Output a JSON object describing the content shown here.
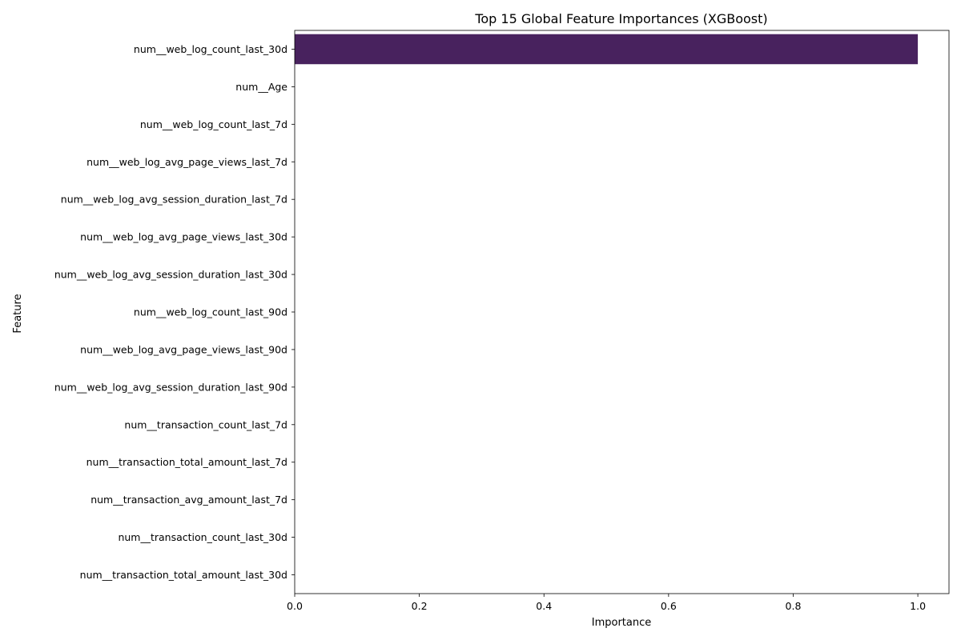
{
  "chart_data": {
    "type": "bar",
    "orientation": "horizontal",
    "title": "Top 15 Global Feature Importances (XGBoost)",
    "xlabel": "Importance",
    "ylabel": "Feature",
    "xlim": [
      0,
      1.05
    ],
    "xticks": [
      "0.0",
      "0.2",
      "0.4",
      "0.6",
      "0.8",
      "1.0"
    ],
    "grid": false,
    "categories": [
      "num__web_log_count_last_30d",
      "num__Age",
      "num__web_log_count_last_7d",
      "num__web_log_avg_page_views_last_7d",
      "num__web_log_avg_session_duration_last_7d",
      "num__web_log_avg_page_views_last_30d",
      "num__web_log_avg_session_duration_last_30d",
      "num__web_log_count_last_90d",
      "num__web_log_avg_page_views_last_90d",
      "num__web_log_avg_session_duration_last_90d",
      "num__transaction_count_last_7d",
      "num__transaction_total_amount_last_7d",
      "num__transaction_avg_amount_last_7d",
      "num__transaction_count_last_30d",
      "num__transaction_total_amount_last_30d"
    ],
    "values": [
      1.0,
      0,
      0,
      0,
      0,
      0,
      0,
      0,
      0,
      0,
      0,
      0,
      0,
      0,
      0
    ],
    "colors": [
      "#48225e",
      "#472c7a",
      "#3f3f88",
      "#34538c",
      "#2c6a8e",
      "#25808e",
      "#1f948c",
      "#22a884",
      "#35b779",
      "#58c765",
      "#7ad151",
      "#a2da37",
      "#c8e020",
      "#e5e419",
      "#fde725"
    ]
  }
}
